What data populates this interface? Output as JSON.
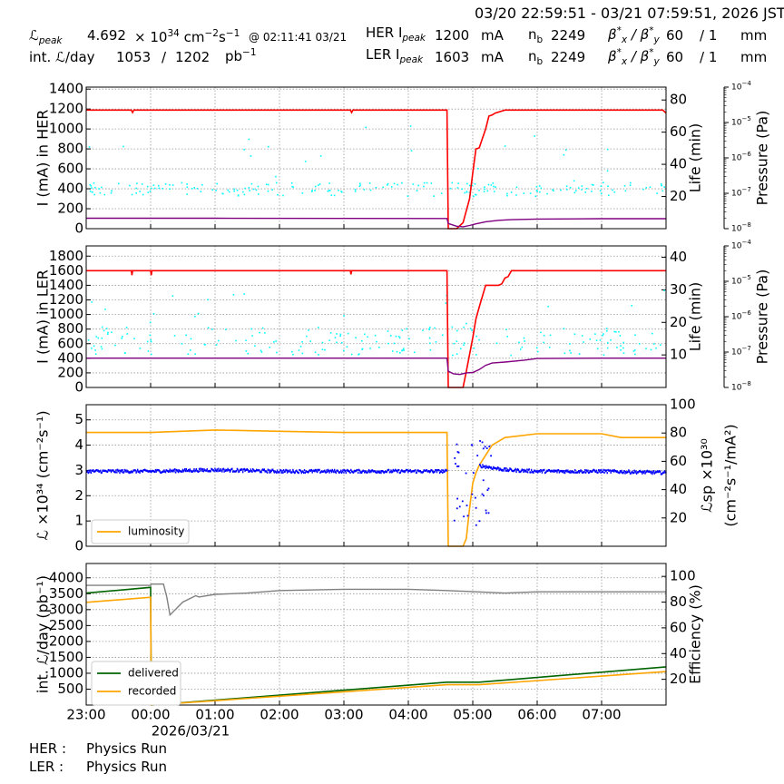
{
  "header": {
    "time_range": "03/20 22:59:51 - 03/21 07:59:51, 2026 JST",
    "lpeak_label": "ℒ",
    "lpeak_sub": "peak",
    "lpeak_value": "4.692",
    "lpeak_unit_pre": "× 10",
    "lpeak_exp": "34",
    "lpeak_unit": "cm",
    "lpeak_unit_exp1": "−2",
    "lpeak_unit_s": "s",
    "lpeak_unit_exp2": "−1",
    "lpeak_at": "@ 02:11:41 03/21",
    "intl_label": "int. ℒ/day",
    "intl_value1": "1053",
    "intl_sep": "/",
    "intl_value2": "1202",
    "intl_unit": "pb",
    "intl_unit_exp": "−1",
    "her_label": "HER I",
    "her_sub": "peak",
    "her_value": "1200",
    "her_unit": "mA",
    "ler_label": "LER I",
    "ler_sub": "peak",
    "ler_value": "1603",
    "ler_unit": "mA",
    "nb_label": "n",
    "nb_sub": "b",
    "her_nb": "2249",
    "ler_nb": "2249",
    "beta_label": "β",
    "beta_x_sub": "x",
    "beta_y_sub": "y",
    "beta_star": "*",
    "beta_slash": "/",
    "her_beta_x": "60",
    "her_beta_y": "/ 1",
    "ler_beta_x": "60",
    "ler_beta_y": "/ 1",
    "beta_unit": "mm"
  },
  "footer": {
    "her_status_label": "HER :",
    "her_status": "Physics Run",
    "ler_status_label": "LER :",
    "ler_status": "Physics Run"
  },
  "chart_data": [
    {
      "type": "line",
      "panel": "HER",
      "ylabel": "I (mA) in HER",
      "y2label": "Life (min)",
      "y3label": "Pressure (Pa)",
      "ylim": [
        0,
        1420
      ],
      "yticks": [
        0,
        200,
        400,
        600,
        800,
        1000,
        1200,
        1400
      ],
      "y2lim": [
        0,
        88
      ],
      "y2ticks": [
        20,
        40,
        60,
        80
      ],
      "y3_log_range": [
        -8,
        -4
      ],
      "grid": true,
      "x_time_hours_from_2300": true,
      "series": [
        {
          "role": "current",
          "color": "#ff0000",
          "x": [
            0,
            0.7,
            0.72,
            0.74,
            4.1,
            4.12,
            4.14,
            5.6,
            5.62,
            5.65,
            5.75,
            5.85,
            5.95,
            6.0,
            6.05,
            6.1,
            6.2,
            6.25,
            6.3,
            6.35,
            6.5,
            6.7,
            8.0,
            8.95,
            9.0
          ],
          "y": [
            1190,
            1190,
            1165,
            1190,
            1190,
            1165,
            1190,
            1190,
            0,
            0,
            0,
            60,
            300,
            560,
            800,
            810,
            1000,
            1130,
            1140,
            1160,
            1190,
            1190,
            1190,
            1190,
            1160
          ]
        },
        {
          "role": "lifetime",
          "color": "#800080",
          "x": [
            0,
            2,
            4,
            5.6,
            5.62,
            5.75,
            5.85,
            5.95,
            6.05,
            6.2,
            6.4,
            6.6,
            7,
            8,
            9
          ],
          "y": [
            6.5,
            6.5,
            6.4,
            6.3,
            3.2,
            1.5,
            1.2,
            2.0,
            3.0,
            4.3,
            5.2,
            5.6,
            6.0,
            6.2,
            6.2
          ]
        },
        {
          "role": "pressure",
          "color": "#00ffff"
        }
      ]
    },
    {
      "type": "line",
      "panel": "LER",
      "ylabel": "I (mA) in LER",
      "y2label": "Life (min)",
      "y3label": "Pressure (Pa)",
      "ylim": [
        0,
        1940
      ],
      "yticks": [
        0,
        200,
        400,
        600,
        800,
        1000,
        1200,
        1400,
        1600,
        1800
      ],
      "y2lim": [
        0,
        43.5
      ],
      "y2ticks": [
        10,
        20,
        30,
        40
      ],
      "y3_log_range": [
        -8,
        -4
      ],
      "grid": true,
      "series": [
        {
          "role": "current",
          "color": "#ff0000",
          "x": [
            0,
            0.7,
            0.71,
            0.72,
            1.0,
            1.01,
            1.02,
            4.1,
            4.11,
            4.12,
            5.6,
            5.62,
            5.85,
            5.9,
            6.0,
            6.05,
            6.1,
            6.2,
            6.3,
            6.4,
            6.45,
            6.5,
            6.55,
            6.6,
            6.7,
            7,
            8,
            9
          ],
          "y": [
            1600,
            1600,
            1540,
            1600,
            1600,
            1540,
            1600,
            1600,
            1550,
            1600,
            1600,
            0,
            0,
            220,
            680,
            940,
            1100,
            1400,
            1400,
            1400,
            1420,
            1500,
            1520,
            1600,
            1600,
            1600,
            1600,
            1600
          ]
        },
        {
          "role": "lifetime",
          "color": "#800080",
          "x": [
            0,
            2,
            4,
            5.6,
            5.62,
            5.7,
            5.8,
            5.9,
            6.0,
            6.1,
            6.2,
            6.3,
            6.5,
            6.8,
            7,
            8,
            9
          ],
          "y": [
            9.0,
            9.0,
            9.0,
            9.0,
            5.0,
            4.2,
            4.0,
            4.5,
            4.6,
            5.5,
            6.8,
            7.5,
            7.8,
            8.4,
            8.9,
            9.0,
            9.0
          ]
        },
        {
          "role": "pressure",
          "color": "#00ffff"
        }
      ]
    },
    {
      "type": "line",
      "panel": "luminosity",
      "ylabel": "ℒ ×10³⁴ (cm⁻²s⁻¹)",
      "y2label_line1": "ℒsp ×10³⁰",
      "y2label_line2": "(cm⁻²s⁻¹/mA²)",
      "ylim": [
        0,
        5.6
      ],
      "yticks": [
        0,
        1,
        2,
        3,
        4,
        5
      ],
      "y2lim": [
        0,
        100
      ],
      "y2ticks": [
        20,
        40,
        60,
        80,
        100
      ],
      "grid": true,
      "legend": "bottom-left",
      "legend_entries": [
        "luminosity"
      ],
      "series": [
        {
          "name": "luminosity",
          "color": "#ffa500",
          "x": [
            0,
            1,
            2,
            3,
            4,
            5,
            5.6,
            5.62,
            5.85,
            5.9,
            5.95,
            6.0,
            6.05,
            6.1,
            6.2,
            6.3,
            6.5,
            7,
            8,
            8.3,
            9
          ],
          "y": [
            4.5,
            4.5,
            4.6,
            4.55,
            4.5,
            4.5,
            4.5,
            0,
            0,
            0.3,
            1.5,
            2.5,
            2.9,
            3.2,
            3.6,
            4.0,
            4.3,
            4.45,
            4.45,
            4.3,
            4.3
          ]
        },
        {
          "role": "specific luminosity",
          "color": "#0000ff",
          "x": [
            0,
            1,
            2,
            3,
            4,
            5,
            5.6,
            6.1,
            6.5,
            7,
            8,
            9
          ],
          "y": [
            53,
            53,
            54,
            53,
            53,
            53,
            53,
            57,
            54,
            53,
            53,
            52
          ]
        }
      ]
    },
    {
      "type": "line",
      "panel": "integrated luminosity",
      "ylabel": "int. ℒ/day (pb⁻¹)",
      "y2label": "Efficiency (%)",
      "ylim": [
        0,
        4450
      ],
      "yticks": [
        500,
        1000,
        1500,
        2000,
        2500,
        3000,
        3500,
        4000
      ],
      "y2lim": [
        0,
        110
      ],
      "y2ticks": [
        20,
        40,
        60,
        80,
        100
      ],
      "grid": true,
      "legend": "bottom-left",
      "legend_entries": [
        "delivered",
        "recorded"
      ],
      "series": [
        {
          "name": "delivered",
          "color": "#006400",
          "x": [
            0,
            1.0,
            1.01,
            5.6,
            6.1,
            9.0
          ],
          "y": [
            3520,
            3700,
            0,
            720,
            720,
            1202
          ]
        },
        {
          "name": "recorded",
          "color": "#ffa500",
          "x": [
            0,
            1.0,
            1.01,
            5.6,
            6.1,
            9.0
          ],
          "y": [
            3230,
            3390,
            0,
            640,
            640,
            1053
          ]
        },
        {
          "role": "efficiency",
          "color": "#808080",
          "x": [
            0,
            1.0,
            1.01,
            1.2,
            1.25,
            1.3,
            1.5,
            1.7,
            1.75,
            2,
            2.5,
            3,
            4,
            5,
            5.6,
            6.5,
            7,
            8,
            9
          ],
          "y": [
            93,
            93,
            94,
            94,
            84,
            70,
            80,
            85,
            84,
            86,
            87,
            89,
            90,
            90,
            89,
            87,
            88,
            88,
            88
          ]
        }
      ]
    }
  ],
  "x_axis": {
    "tick_labels": [
      "23:00",
      "00:00",
      "01:00",
      "02:00",
      "03:00",
      "04:00",
      "05:00",
      "06:00",
      "07:00"
    ],
    "date_label": "2026/03/21"
  },
  "legends": {
    "lum": [
      "luminosity"
    ],
    "intl": [
      "delivered",
      "recorded"
    ]
  }
}
